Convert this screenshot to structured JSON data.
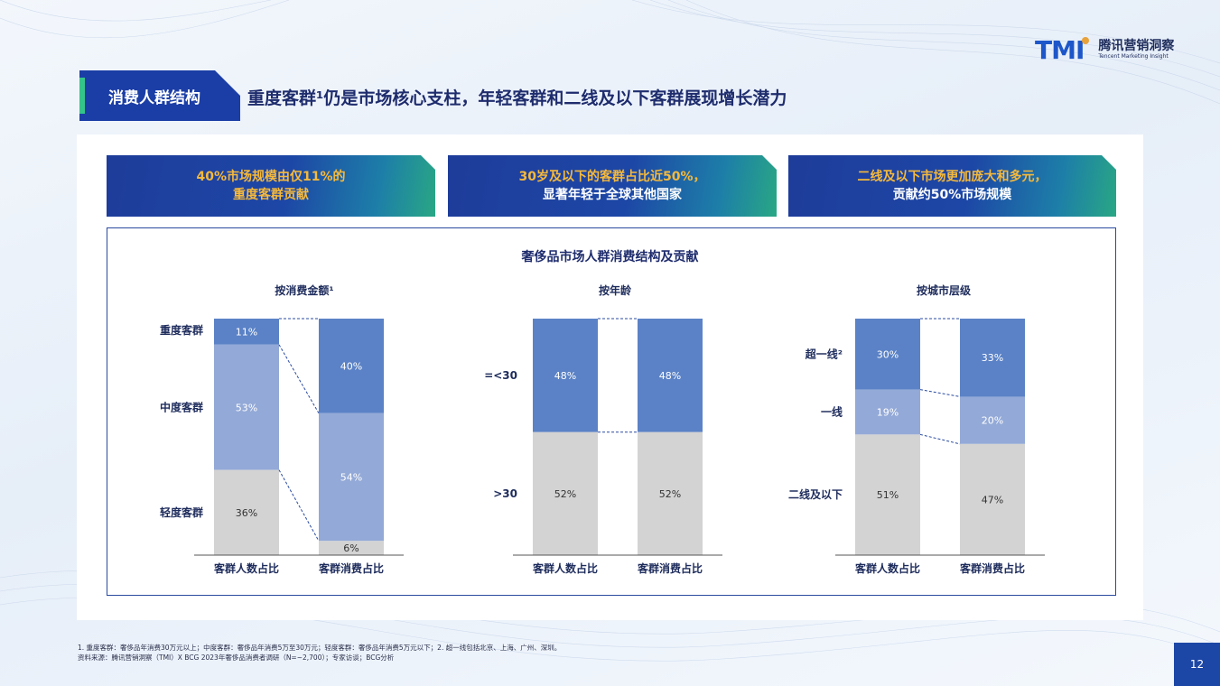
{
  "logo": {
    "mark": "TMI",
    "name_cn": "腾讯营销洞察",
    "name_en": "Tencent Marketing Insight"
  },
  "section_tag": "消费人群结构",
  "headline": "重度客群¹仍是市场核心支柱，年轻客群和二线及以下客群展现增长潜力",
  "banners": [
    {
      "line1": "40%市场规模由仅11%的",
      "line2": "重度客群贡献"
    },
    {
      "line1": "30岁及以下的客群占比近50%，",
      "line2": "显著年轻于全球其他国家"
    },
    {
      "line1": "二线及以下市场更加庞大和多元，",
      "line2": "贡献约50%市场规模"
    }
  ],
  "main_chart_title": "奢侈品市场人群消费结构及贡献",
  "colors": {
    "dark_blue": "#5b82c6",
    "mid_blue": "#93a9d7",
    "gray": "#d3d3d3",
    "text": "#1e2c5c",
    "navy": "#1d47a6"
  },
  "chart_data": [
    {
      "type": "bar",
      "stacked": true,
      "title": "按消费金额¹",
      "categories": [
        "客群人数占比",
        "客群消费占比"
      ],
      "series": [
        {
          "name": "重度客群",
          "values": [
            11,
            40
          ],
          "labels": [
            "11%",
            "40%"
          ],
          "color": "#5b82c6"
        },
        {
          "name": "中度客群",
          "values": [
            53,
            54
          ],
          "labels": [
            "53%",
            "54%"
          ],
          "color": "#93a9d7"
        },
        {
          "name": "轻度客群",
          "values": [
            36,
            6
          ],
          "labels": [
            "36%",
            "6%"
          ],
          "color": "#d3d3d3"
        }
      ]
    },
    {
      "type": "bar",
      "stacked": true,
      "title": "按年龄",
      "categories": [
        "客群人数占比",
        "客群消费占比"
      ],
      "series": [
        {
          "name": "=<30",
          "values": [
            48,
            48
          ],
          "labels": [
            "48%",
            "48%"
          ],
          "color": "#5b82c6"
        },
        {
          "name": ">30",
          "values": [
            52,
            52
          ],
          "labels": [
            "52%",
            "52%"
          ],
          "color": "#d3d3d3"
        }
      ]
    },
    {
      "type": "bar",
      "stacked": true,
      "title": "按城市层级",
      "categories": [
        "客群人数占比",
        "客群消费占比"
      ],
      "series": [
        {
          "name": "超一线²",
          "values": [
            30,
            33
          ],
          "labels": [
            "30%",
            "33%"
          ],
          "color": "#5b82c6"
        },
        {
          "name": "一线",
          "values": [
            19,
            20
          ],
          "labels": [
            "19%",
            "20%"
          ],
          "color": "#93a9d7"
        },
        {
          "name": "二线及以下",
          "values": [
            51,
            47
          ],
          "labels": [
            "51%",
            "47%"
          ],
          "color": "#d3d3d3"
        }
      ]
    }
  ],
  "footnotes": [
    "1. 重度客群：奢侈品年消费30万元以上；中度客群：奢侈品年消费5万至30万元；轻度客群：奢侈品年消费5万元以下；2. 超一线包括北京、上海、广州、深圳。",
    "资料来源：腾讯营销洞察（TMI）X BCG 2023年奢侈品消费者调研（N=~2,700）；专家访谈；BCG分析"
  ],
  "page_number": "12"
}
